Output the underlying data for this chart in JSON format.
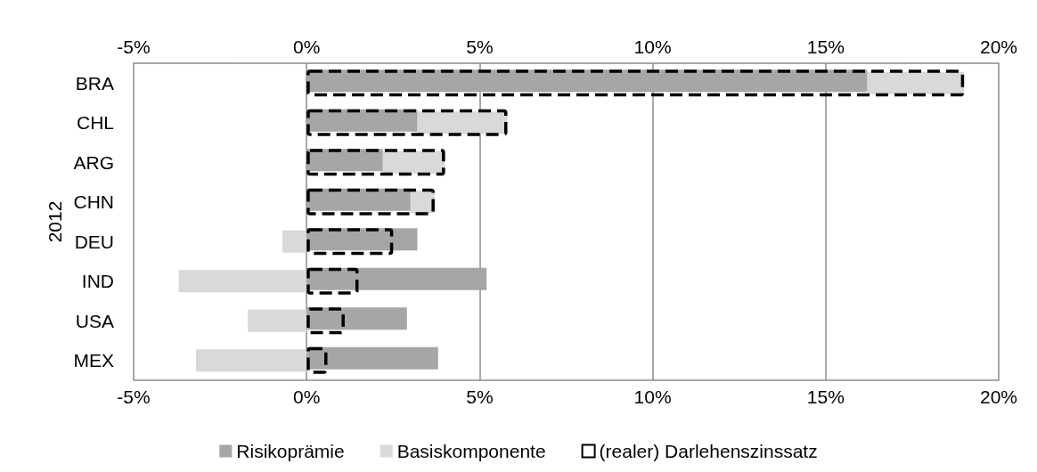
{
  "chart_data": {
    "type": "bar",
    "orientation": "horizontal",
    "ylabel": "2012",
    "categories": [
      "BRA",
      "CHL",
      "ARG",
      "CHN",
      "DEU",
      "IND",
      "USA",
      "MEX"
    ],
    "series": [
      {
        "name": "Risikoprämie",
        "color": "#a6a6a6",
        "values": [
          16.2,
          3.2,
          2.2,
          3.0,
          3.2,
          5.2,
          2.9,
          3.8
        ]
      },
      {
        "name": "Basiskomponente",
        "color": "#d9d9d9",
        "base": [
          16.2,
          3.2,
          2.2,
          3.0,
          0,
          0,
          0,
          0
        ],
        "values": [
          2.8,
          2.6,
          1.8,
          0.7,
          -0.7,
          -3.7,
          -1.7,
          -3.2
        ]
      },
      {
        "name": "(realer) Darlehenszinssatz",
        "color": "#000000",
        "line_style": "dashed",
        "values": [
          19.0,
          5.8,
          4.0,
          3.7,
          2.5,
          1.5,
          1.1,
          0.6
        ]
      }
    ],
    "xlim": [
      -5,
      20
    ],
    "xticks": [
      {
        "value": -5,
        "label": "-5%"
      },
      {
        "value": 0,
        "label": "0%"
      },
      {
        "value": 5,
        "label": "5%"
      },
      {
        "value": 10,
        "label": "10%"
      },
      {
        "value": 15,
        "label": "15%"
      },
      {
        "value": 20,
        "label": "20%"
      }
    ],
    "x2lim": [
      -5,
      20
    ],
    "x2ticks": [
      {
        "value": -5,
        "label": "-5%"
      },
      {
        "value": 0,
        "label": "0%"
      },
      {
        "value": 5,
        "label": "5%"
      },
      {
        "value": 10,
        "label": "10%"
      },
      {
        "value": 15,
        "label": "15%"
      },
      {
        "value": 20,
        "label": "20%"
      }
    ],
    "grid": "x",
    "legend": "bottom"
  }
}
